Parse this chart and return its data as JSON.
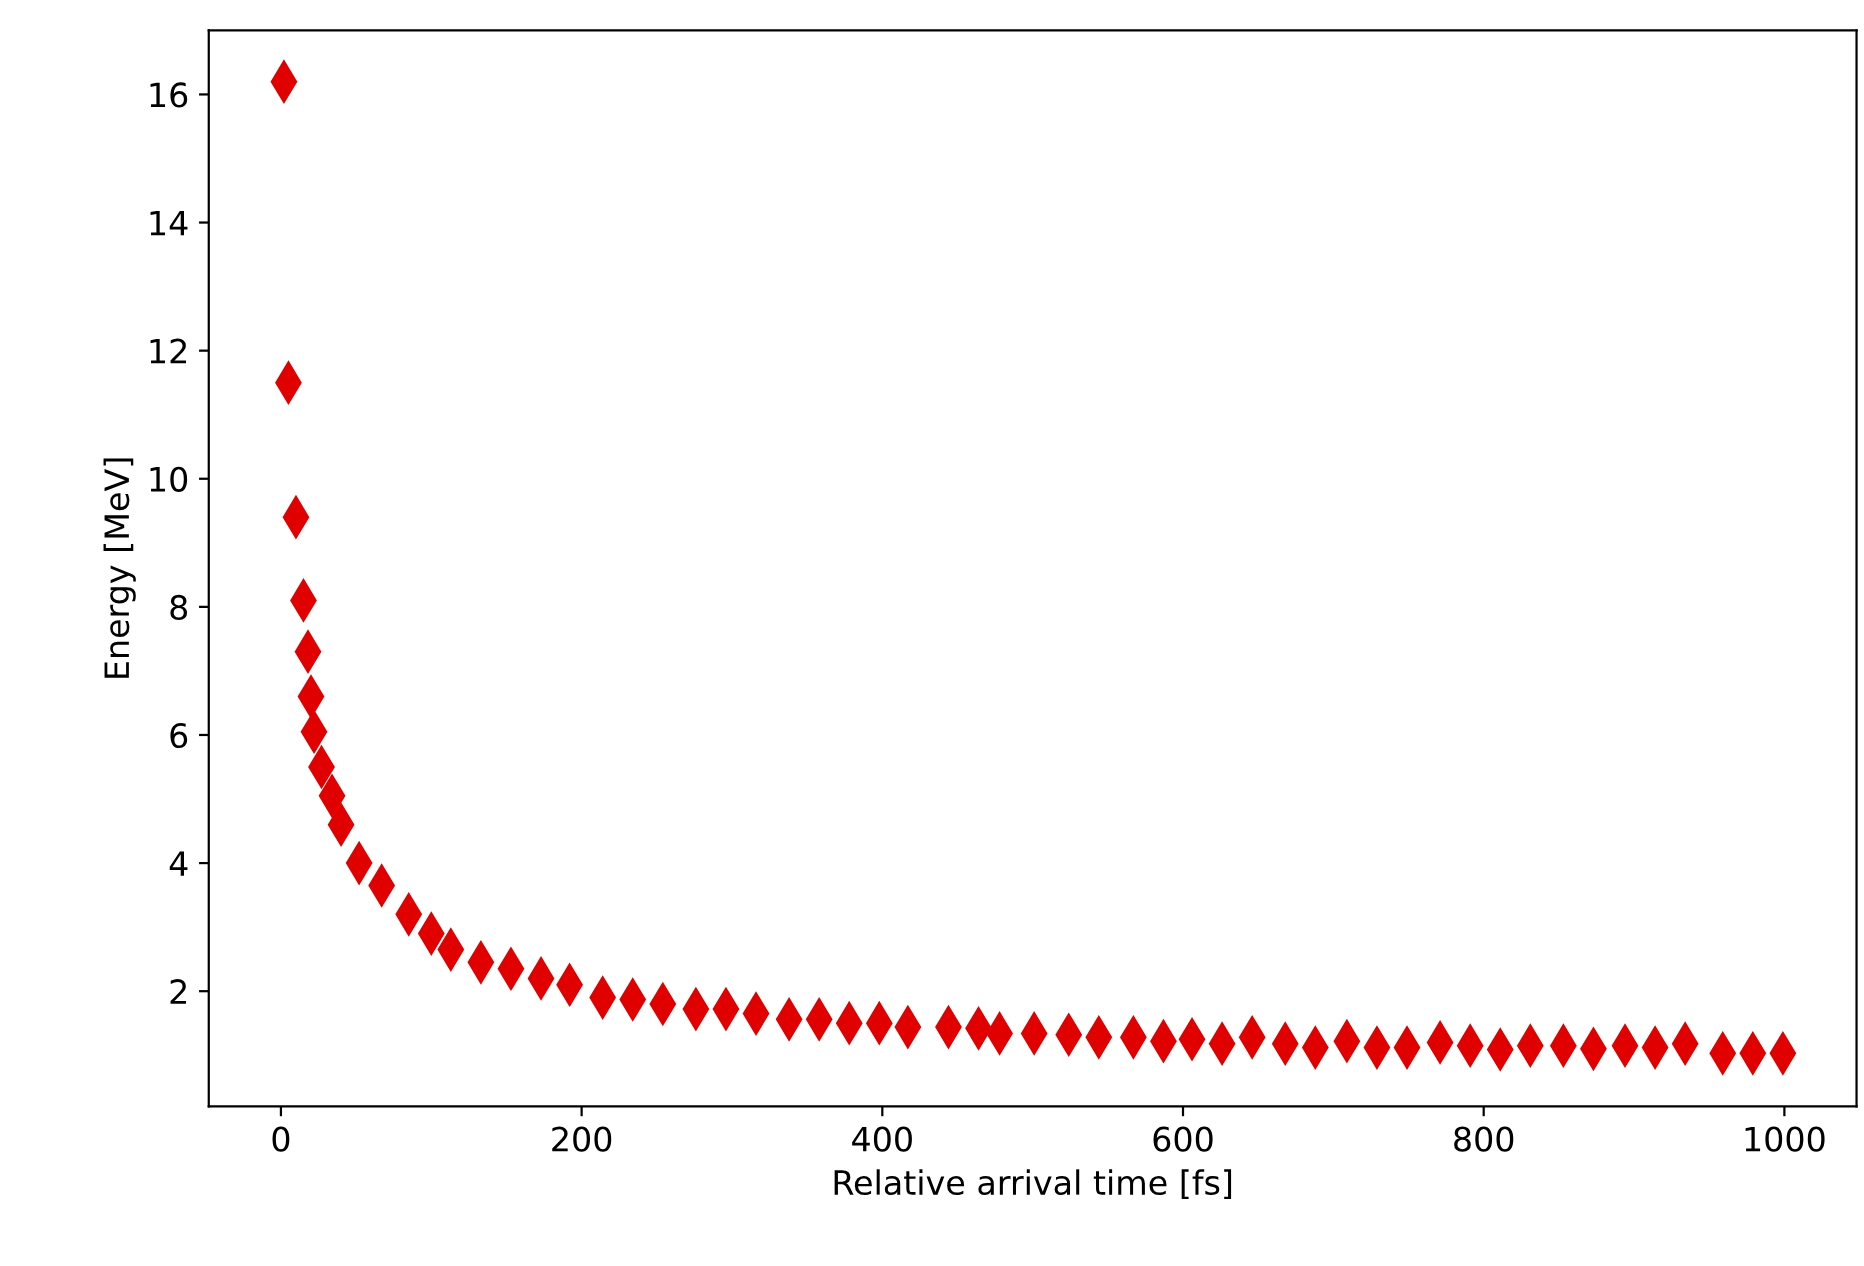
{
  "chart_data": {
    "type": "scatter",
    "xlabel": "Relative arrival time [fs]",
    "ylabel": "Energy [MeV]",
    "marker": "diamond",
    "grid": false,
    "xlim": [
      -48,
      1048
    ],
    "ylim": [
      0.2,
      17.0
    ],
    "xticks": [
      0,
      200,
      400,
      600,
      800,
      1000
    ],
    "yticks": [
      2,
      4,
      6,
      8,
      10,
      12,
      14,
      16
    ],
    "series": [
      {
        "color": "#e00000",
        "x": [
          2,
          5,
          10,
          15,
          18,
          20,
          22,
          27,
          34,
          40,
          52,
          67,
          85,
          100,
          113,
          133,
          153,
          173,
          192,
          214,
          234,
          254,
          276,
          296,
          316,
          338,
          358,
          378,
          398,
          417,
          444,
          464,
          478,
          501,
          524,
          544,
          567,
          587,
          606,
          626,
          646,
          668,
          688,
          709,
          729,
          749,
          771,
          791,
          811,
          831,
          853,
          873,
          894,
          914,
          934,
          959,
          979,
          999
        ],
        "values": [
          16.2,
          11.5,
          9.4,
          8.1,
          7.3,
          6.6,
          6.05,
          5.5,
          5.05,
          4.6,
          4.0,
          3.65,
          3.2,
          2.9,
          2.65,
          2.45,
          2.35,
          2.2,
          2.1,
          1.9,
          1.87,
          1.8,
          1.72,
          1.72,
          1.65,
          1.56,
          1.56,
          1.5,
          1.5,
          1.44,
          1.44,
          1.42,
          1.34,
          1.34,
          1.32,
          1.28,
          1.28,
          1.22,
          1.25,
          1.18,
          1.28,
          1.18,
          1.12,
          1.22,
          1.12,
          1.12,
          1.2,
          1.15,
          1.09,
          1.15,
          1.15,
          1.1,
          1.15,
          1.12,
          1.18,
          1.03,
          1.03,
          1.03
        ]
      }
    ]
  }
}
